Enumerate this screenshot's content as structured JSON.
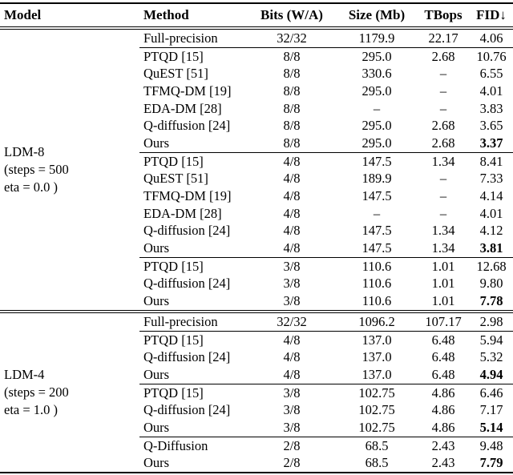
{
  "colors": {
    "text": "#000000",
    "background": "#ffffff"
  },
  "table": {
    "columns": [
      "Model",
      "Method",
      "Bits (W/A)",
      "Size (Mb)",
      "TBops",
      "FID↓"
    ],
    "sections": [
      {
        "model": [
          "LDM-8",
          "(steps = 500",
          "eta = 0.0 )"
        ],
        "groups": [
          {
            "rows": [
              {
                "method": "Full-precision",
                "bits": "32/32",
                "size": "1179.9",
                "tbops": "22.17",
                "fid": "4.06",
                "bold": false
              }
            ]
          },
          {
            "rows": [
              {
                "method": "PTQD [15]",
                "bits": "8/8",
                "size": "295.0",
                "tbops": "2.68",
                "fid": "10.76",
                "bold": false
              },
              {
                "method": "QuEST [51]",
                "bits": "8/8",
                "size": "330.6",
                "tbops": "–",
                "fid": "6.55",
                "bold": false
              },
              {
                "method": "TFMQ-DM [19]",
                "bits": "8/8",
                "size": "295.0",
                "tbops": "–",
                "fid": "4.01",
                "bold": false
              },
              {
                "method": "EDA-DM [28]",
                "bits": "8/8",
                "size": "–",
                "tbops": "–",
                "fid": "3.83",
                "bold": false
              },
              {
                "method": "Q-diffusion [24]",
                "bits": "8/8",
                "size": "295.0",
                "tbops": "2.68",
                "fid": "3.65",
                "bold": false
              },
              {
                "method": "Ours",
                "bits": "8/8",
                "size": "295.0",
                "tbops": "2.68",
                "fid": "3.37",
                "bold": true
              }
            ]
          },
          {
            "rows": [
              {
                "method": "PTQD [15]",
                "bits": "4/8",
                "size": "147.5",
                "tbops": "1.34",
                "fid": "8.41",
                "bold": false
              },
              {
                "method": "QuEST [51]",
                "bits": "4/8",
                "size": "189.9",
                "tbops": "–",
                "fid": "7.33",
                "bold": false
              },
              {
                "method": "TFMQ-DM [19]",
                "bits": "4/8",
                "size": "147.5",
                "tbops": "–",
                "fid": "4.14",
                "bold": false
              },
              {
                "method": "EDA-DM [28]",
                "bits": "4/8",
                "size": "–",
                "tbops": "–",
                "fid": "4.01",
                "bold": false
              },
              {
                "method": "Q-diffusion [24]",
                "bits": "4/8",
                "size": "147.5",
                "tbops": "1.34",
                "fid": "4.12",
                "bold": false
              },
              {
                "method": "Ours",
                "bits": "4/8",
                "size": "147.5",
                "tbops": "1.34",
                "fid": "3.81",
                "bold": true
              }
            ]
          },
          {
            "rows": [
              {
                "method": "PTQD [15]",
                "bits": "3/8",
                "size": "110.6",
                "tbops": "1.01",
                "fid": "12.68",
                "bold": false
              },
              {
                "method": "Q-diffusion [24]",
                "bits": "3/8",
                "size": "110.6",
                "tbops": "1.01",
                "fid": "9.80",
                "bold": false
              },
              {
                "method": "Ours",
                "bits": "3/8",
                "size": "110.6",
                "tbops": "1.01",
                "fid": "7.78",
                "bold": true
              }
            ]
          }
        ]
      },
      {
        "model": [
          "LDM-4",
          "(steps = 200",
          "eta = 1.0 )"
        ],
        "groups": [
          {
            "rows": [
              {
                "method": "Full-precision",
                "bits": "32/32",
                "size": "1096.2",
                "tbops": "107.17",
                "fid": "2.98",
                "bold": false
              }
            ]
          },
          {
            "rows": [
              {
                "method": "PTQD [15]",
                "bits": "4/8",
                "size": "137.0",
                "tbops": "6.48",
                "fid": "5.94",
                "bold": false
              },
              {
                "method": "Q-diffusion [24]",
                "bits": "4/8",
                "size": "137.0",
                "tbops": "6.48",
                "fid": "5.32",
                "bold": false
              },
              {
                "method": "Ours",
                "bits": "4/8",
                "size": "137.0",
                "tbops": "6.48",
                "fid": "4.94",
                "bold": true
              }
            ]
          },
          {
            "rows": [
              {
                "method": "PTQD [15]",
                "bits": "3/8",
                "size": "102.75",
                "tbops": "4.86",
                "fid": "6.46",
                "bold": false
              },
              {
                "method": "Q-diffusion [24]",
                "bits": "3/8",
                "size": "102.75",
                "tbops": "4.86",
                "fid": "7.17",
                "bold": false
              },
              {
                "method": "Ours",
                "bits": "3/8",
                "size": "102.75",
                "tbops": "4.86",
                "fid": "5.14",
                "bold": true
              }
            ]
          },
          {
            "rows": [
              {
                "method": "Q-Diffusion",
                "bits": "2/8",
                "size": "68.5",
                "tbops": "2.43",
                "fid": "9.48",
                "bold": false
              },
              {
                "method": "Ours",
                "bits": "2/8",
                "size": "68.5",
                "tbops": "2.43",
                "fid": "7.79",
                "bold": true
              }
            ]
          }
        ]
      }
    ]
  }
}
